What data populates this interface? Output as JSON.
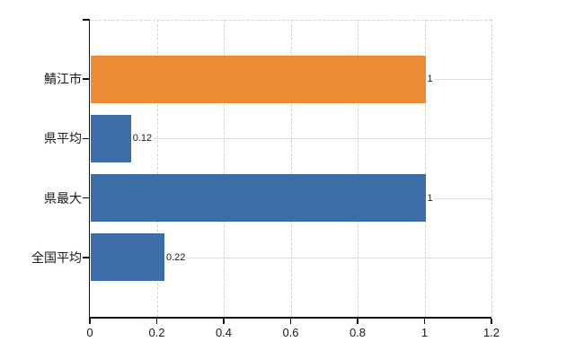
{
  "chart_data": {
    "type": "bar",
    "orientation": "horizontal",
    "title": "",
    "xlabel": "",
    "ylabel": "",
    "categories": [
      "鯖江市",
      "県平均",
      "県最大",
      "全国平均"
    ],
    "values": [
      1,
      0.12,
      1,
      0.22
    ],
    "value_labels": [
      "1",
      "0.12",
      "1",
      "0.22"
    ],
    "bar_colors": [
      "#ED8B34",
      "#3C6DA7",
      "#3C6DA7",
      "#3C6DA7"
    ],
    "xlim": [
      0,
      1.2
    ],
    "x_ticks": [
      0,
      0.2,
      0.4,
      0.6,
      0.8,
      1,
      1.2
    ],
    "x_tick_labels": [
      "0",
      "0.2",
      "0.4",
      "0.6",
      "0.8",
      "1",
      "1.2"
    ],
    "legend": null,
    "grid": {
      "vertical_gridlines": "dashed",
      "horizontal_category_lines": "solid",
      "top_border": "dashed"
    },
    "colors": {
      "grid_dashed": "#D4D4D8",
      "category_line": "#D9DFD9",
      "axis": "#111111",
      "text": "#1a1a1a",
      "background": "#FFFFFF"
    }
  }
}
